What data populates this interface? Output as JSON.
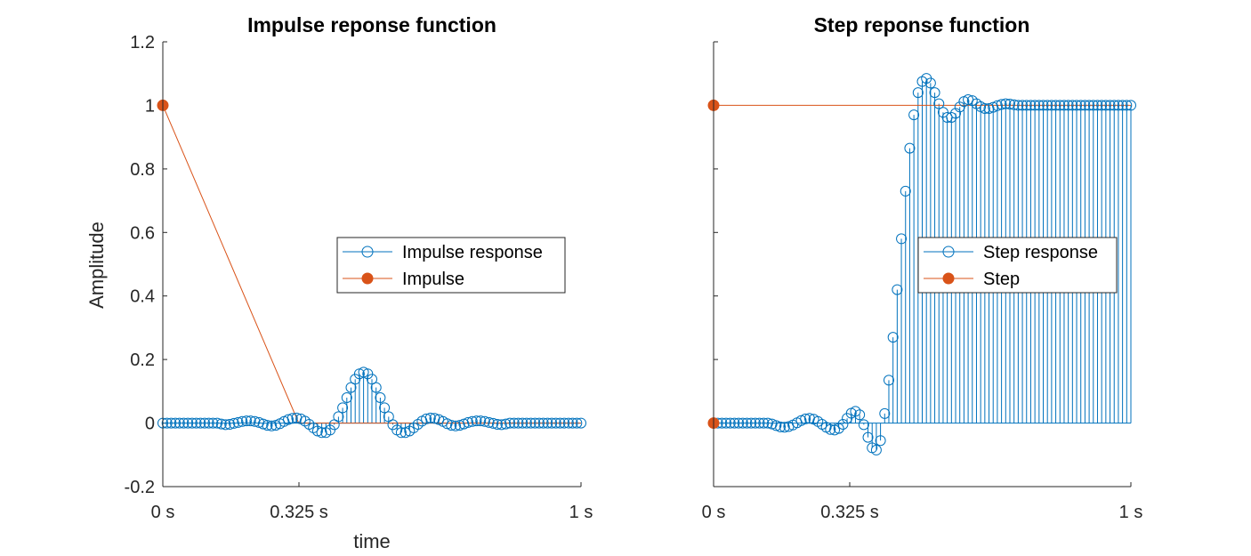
{
  "chart_data": [
    {
      "type": "stem",
      "title": "Impulse reponse function",
      "xlabel": "time",
      "ylabel": "Amplitude",
      "xlim": [
        0,
        1
      ],
      "ylim": [
        -0.2,
        1.2
      ],
      "yticks": [
        "-0.2",
        "0",
        "0.2",
        "0.4",
        "0.6",
        "0.8",
        "1",
        "1.2"
      ],
      "xticks": [
        {
          "value": 0,
          "label": "0 s"
        },
        {
          "value": 0.325,
          "label": "0.325 s"
        },
        {
          "value": 1,
          "label": "1 s"
        }
      ],
      "legend_position": "center-right",
      "series": [
        {
          "name": "Impulse response",
          "color": "#0072BD",
          "marker": "open-circle",
          "x_start": 0,
          "x_step": 0.01,
          "values": [
            0,
            0,
            0,
            0,
            0,
            0,
            0,
            0,
            0,
            0,
            0,
            0,
            0,
            0,
            -0.003,
            -0.005,
            -0.004,
            -0.001,
            0.002,
            0.005,
            0.007,
            0.007,
            0.005,
            0.002,
            -0.003,
            -0.007,
            -0.009,
            -0.007,
            -0.002,
            0.005,
            0.011,
            0.015,
            0.016,
            0.013,
            0.006,
            -0.004,
            -0.015,
            -0.025,
            -0.03,
            -0.03,
            -0.022,
            -0.005,
            0.02,
            0.048,
            0.08,
            0.112,
            0.138,
            0.155,
            0.16,
            0.155,
            0.138,
            0.112,
            0.08,
            0.048,
            0.02,
            -0.005,
            -0.022,
            -0.03,
            -0.03,
            -0.025,
            -0.015,
            -0.004,
            0.006,
            0.013,
            0.016,
            0.015,
            0.011,
            0.005,
            -0.002,
            -0.007,
            -0.009,
            -0.007,
            -0.003,
            0.002,
            0.005,
            0.007,
            0.007,
            0.005,
            0.002,
            -0.001,
            -0.004,
            -0.005,
            -0.003,
            0,
            0,
            0,
            0,
            0,
            0,
            0,
            0,
            0,
            0,
            0,
            0,
            0,
            0,
            0,
            0,
            0,
            0
          ]
        },
        {
          "name": "Impulse",
          "color": "#D95319",
          "marker": "filled-circle",
          "points": [
            [
              0,
              1
            ],
            [
              0.325,
              0
            ],
            [
              1,
              0
            ]
          ]
        }
      ]
    },
    {
      "type": "stem",
      "title": "Step reponse function",
      "xlabel": "",
      "ylabel": "",
      "xlim": [
        0,
        1
      ],
      "ylim": [
        -0.2,
        1.2
      ],
      "yticks": [
        "",
        "",
        "",
        "",
        "",
        "",
        "",
        ""
      ],
      "xticks": [
        {
          "value": 0,
          "label": "0 s"
        },
        {
          "value": 0.325,
          "label": "0.325 s"
        },
        {
          "value": 1,
          "label": "1 s"
        }
      ],
      "legend_position": "center-right",
      "series": [
        {
          "name": "Step response",
          "color": "#0072BD",
          "marker": "open-circle",
          "x_start": 0,
          "x_step": 0.01,
          "values": [
            0,
            0,
            0,
            0,
            0,
            0,
            0,
            0,
            0,
            0,
            0,
            0,
            0,
            0,
            -0.003,
            -0.008,
            -0.012,
            -0.013,
            -0.011,
            -0.006,
            0.001,
            0.008,
            0.013,
            0.015,
            0.012,
            0.005,
            -0.004,
            -0.013,
            -0.02,
            -0.022,
            -0.017,
            -0.004,
            0.015,
            0.031,
            0.037,
            0.026,
            -0.005,
            -0.045,
            -0.078,
            -0.085,
            -0.055,
            0.03,
            0.135,
            0.27,
            0.42,
            0.58,
            0.73,
            0.865,
            0.97,
            1.04,
            1.075,
            1.085,
            1.07,
            1.04,
            1.005,
            0.978,
            0.962,
            0.962,
            0.975,
            0.995,
            1.012,
            1.018,
            1.015,
            1.005,
            0.996,
            0.99,
            0.99,
            0.994,
            0.999,
            1.003,
            1.005,
            1.004,
            1.002,
            1,
            1,
            1,
            1,
            1,
            1,
            1,
            1,
            1,
            1,
            1,
            1,
            1,
            1,
            1,
            1,
            1,
            1,
            1,
            1,
            1,
            1,
            1,
            1,
            1,
            1,
            1,
            1
          ]
        },
        {
          "name": "Step",
          "color": "#D95319",
          "marker": "filled-circle",
          "points": [
            [
              0,
              0
            ],
            [
              0,
              1
            ],
            [
              1,
              1
            ]
          ]
        }
      ]
    }
  ]
}
